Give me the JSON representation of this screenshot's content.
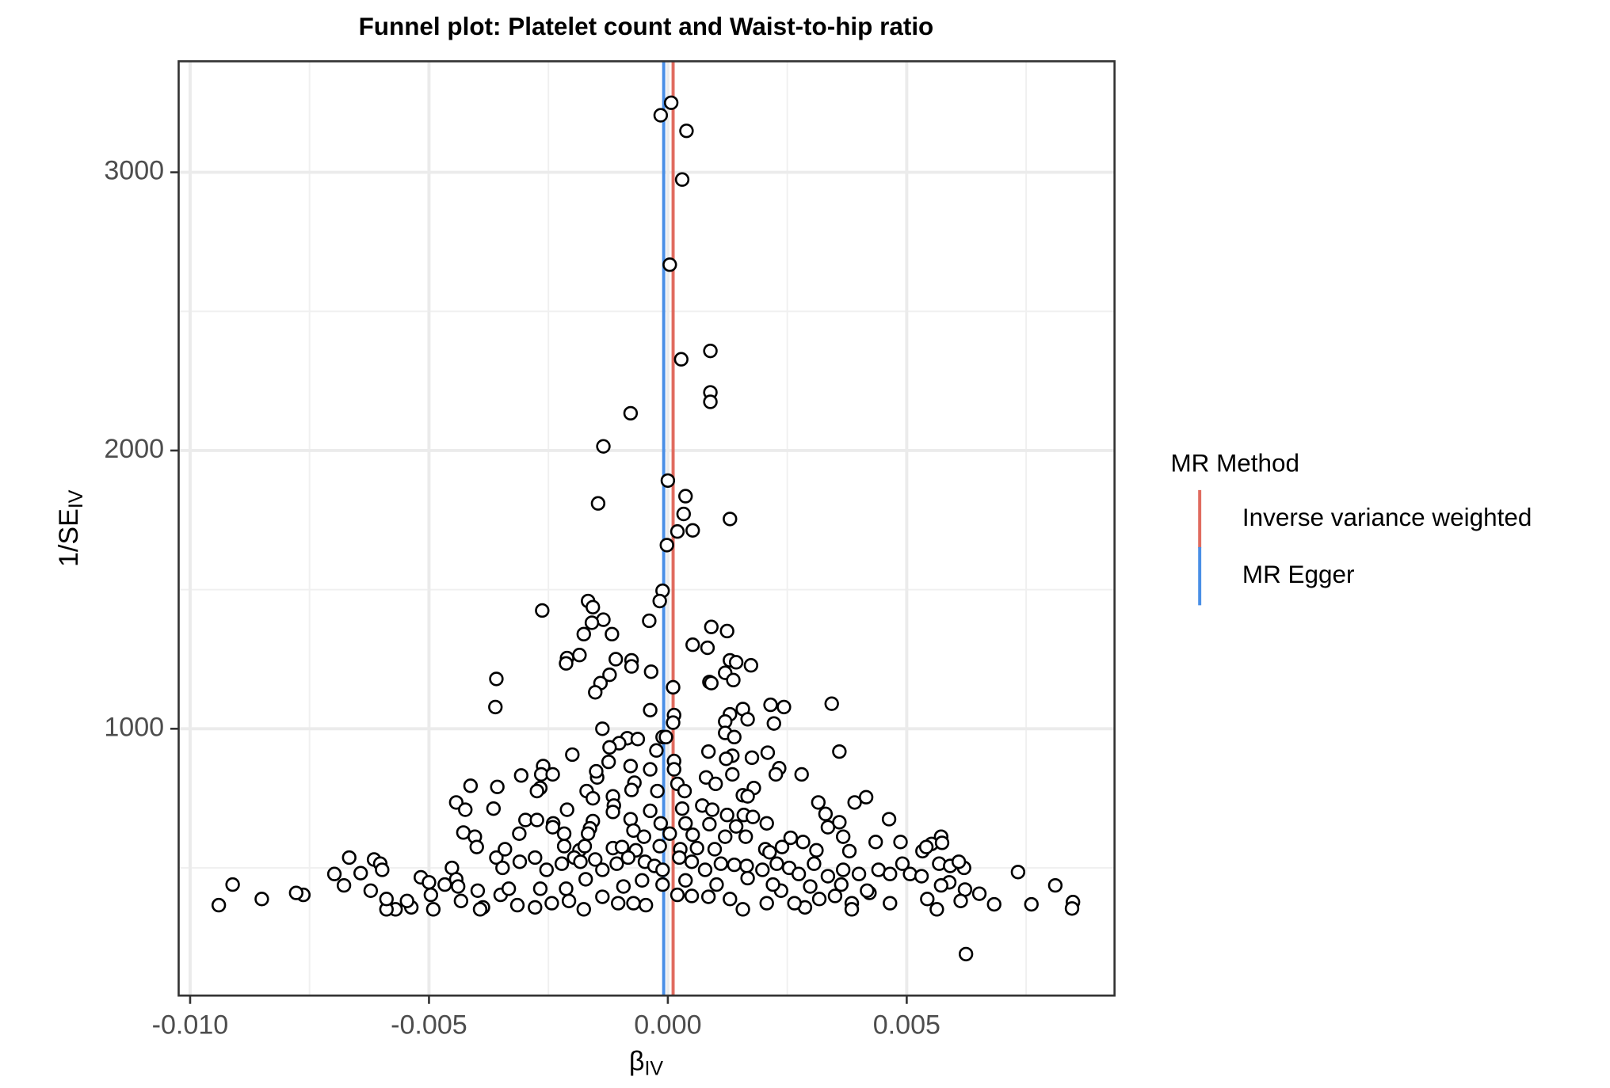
{
  "chart_data": {
    "type": "scatter",
    "title": "Funnel plot: Platelet count and Waist-to-hip ratio",
    "xlabel": "β",
    "xlabel_sub": "IV",
    "ylabel": "1/SE",
    "ylabel_sub": "IV",
    "xlim": [
      -0.01024,
      0.00935
    ],
    "ylim": [
      41,
      3399
    ],
    "xticks": [
      {
        "value": -0.01,
        "label": "-0.010"
      },
      {
        "value": -0.005,
        "label": "-0.005"
      },
      {
        "value": 0,
        "label": "0.000"
      },
      {
        "value": 0.005,
        "label": "0.005"
      }
    ],
    "yticks": [
      1000,
      2000,
      3000
    ],
    "x_minor_grid": [
      -0.0075,
      -0.0025,
      0.0025,
      0.0075
    ],
    "y_minor_grid": [
      500,
      1500,
      2500
    ],
    "grid": true,
    "legend_title": "MR Method",
    "reference_lines": [
      {
        "name": "Inverse variance weighted",
        "color": "#e06b5f",
        "value": 0.00011
      },
      {
        "name": "MR Egger",
        "color": "#4a8fe6",
        "value": -8.7e-05
      }
    ],
    "x": [
      7e-05,
      -0.00015,
      0.00039,
      0.0003,
      4e-05,
      0.00089,
      0.00028,
      0.00089,
      0.00089,
      -0.00078,
      -0.00135,
      0.0,
      0.00037,
      -0.00146,
      0.00033,
      0.0013,
      0.00052,
      0.0002,
      -2e-05,
      -0.00011,
      -0.00017,
      -0.00263,
      -0.00167,
      -0.00157,
      -0.00135,
      -0.00039,
      -0.00159,
      -0.00176,
      -0.00117,
      0.00091,
      0.00124,
      0.00052,
      0.00083,
      -0.00211,
      -0.00213,
      -0.00185,
      -0.00109,
      -0.00076,
      -0.00076,
      0.0013,
      0.00143,
      0.00174,
      0.0012,
      -0.00122,
      -0.00141,
      -0.00152,
      -0.00035,
      -0.00359,
      0.00011,
      0.00087,
      0.00137,
      0.00091,
      -0.00361,
      -0.00037,
      0.00157,
      0.00215,
      0.00243,
      0.0013,
      0.0012,
      0.00013,
      0.00011,
      -0.00137,
      0.00343,
      0.00222,
      0.00167,
      -0.00011,
      -4e-05,
      -0.00085,
      -0.00063,
      -0.00102,
      -0.00122,
      0.0012,
      0.00139,
      -0.00024,
      0.00085,
      0.00209,
      0.00359,
      -0.002,
      0.00135,
      0.00013,
      0.00122,
      0.00176,
      -0.00124,
      -0.00078,
      -0.00037,
      0.00013,
      -0.00261,
      0.00233,
      0.00226,
      0.00135,
      0.0028,
      -0.00265,
      -0.00307,
      -0.00241,
      -0.00148,
      -0.0015,
      -0.0007,
      0.0008,
      0.001,
      0.0002,
      -0.00413,
      -0.00357,
      -0.00267,
      -0.00274,
      -0.0017,
      -0.00076,
      -0.00022,
      0.00035,
      0.0018,
      0.00157,
      0.00167,
      0.00415,
      0.00391,
      0.00315,
      -0.00157,
      -0.00115,
      -0.00211,
      -0.00443,
      -0.00424,
      -0.00365,
      -0.00298,
      -0.00274,
      -0.0024,
      -0.00241,
      -0.00113,
      -0.00115,
      -0.00037,
      0.0003,
      0.00072,
      0.00093,
      0.00124,
      0.00159,
      0.00178,
      0.0033,
      0.00335,
      0.00359,
      0.00463,
      -0.00157,
      -0.00163,
      -0.00078,
      -0.00015,
      0.00037,
      0.00087,
      0.00143,
      0.00207,
      -0.00428,
      -0.00404,
      -0.00311,
      -0.00217,
      -0.00167,
      -0.00072,
      -0.0005,
      4e-05,
      0.00052,
      0.0012,
      0.00163,
      0.00257,
      0.00283,
      0.00367,
      0.00435,
      0.00487,
      0.00572,
      0.00552,
      0.00574,
      -0.004,
      -0.00217,
      -0.00185,
      -0.00174,
      -0.00115,
      -0.00096,
      -0.00067,
      -0.00017,
      0.00026,
      0.00061,
      0.00098,
      0.00204,
      0.00239,
      0.00213,
      0.00311,
      0.0038,
      0.00533,
      0.00541,
      -0.00667,
      -0.00615,
      -0.00602,
      -0.00598,
      -0.00698,
      -0.00643,
      -0.00678,
      -0.00622,
      -0.00517,
      -0.005,
      -0.00452,
      -0.00443,
      -0.00439,
      -0.00467,
      -0.00359,
      -0.00341,
      -0.00346,
      -0.0031,
      -0.00278,
      -0.00254,
      -0.00222,
      -0.00196,
      -0.00183,
      -0.00152,
      -0.00137,
      -0.00107,
      -0.00083,
      -0.00048,
      -0.00028,
      -0.00011,
      0.00024,
      0.0005,
      0.00078,
      0.00111,
      0.00139,
      0.00165,
      0.00198,
      0.00228,
      0.00254,
      0.00274,
      0.00306,
      0.00335,
      0.00367,
      0.004,
      0.00441,
      0.00465,
      0.00491,
      0.00507,
      0.00531,
      0.00568,
      0.00591,
      0.0062,
      0.00609,
      0.00589,
      0.00572,
      0.00733,
      0.00811,
      0.00848,
      0.00846,
      0.00761,
      0.00683,
      0.00652,
      0.00622,
      0.00613,
      0.00543,
      0.00563,
      0.00465,
      0.00422,
      0.00385,
      0.00385,
      0.0035,
      0.00317,
      0.00287,
      0.00265,
      0.00237,
      0.00207,
      0.00157,
      0.0013,
      0.00085,
      0.0005,
      0.0002,
      -0.00011,
      -0.00046,
      -0.00072,
      -0.00104,
      -0.00137,
      -0.00176,
      -0.00207,
      -0.00243,
      -0.00278,
      -0.00315,
      -0.0035,
      -0.00387,
      -0.00393,
      -0.00433,
      -0.00491,
      -0.00496,
      -0.00537,
      -0.00546,
      -0.0057,
      -0.00589,
      -0.00589,
      -0.00763,
      -0.00778,
      -0.0085,
      -0.00911,
      -0.0094,
      0.00624,
      -0.00172,
      -0.00093,
      -0.00054,
      0.00037,
      0.00102,
      0.00167,
      0.0022,
      0.00298,
      0.00363,
      0.00417,
      -0.00398,
      -0.00333,
      -0.00267,
      -0.00213
    ],
    "values": [
      3250,
      3205,
      3149,
      2974,
      2668,
      2358,
      2328,
      2209,
      2175,
      2134,
      2015,
      1892,
      1836,
      1810,
      1772,
      1754,
      1713,
      1709,
      1660,
      1496,
      1459,
      1425,
      1459,
      1437,
      1392,
      1388,
      1381,
      1340,
      1340,
      1366,
      1351,
      1302,
      1291,
      1254,
      1235,
      1265,
      1250,
      1246,
      1224,
      1246,
      1239,
      1228,
      1201,
      1194,
      1164,
      1131,
      1205,
      1179,
      1149,
      1168,
      1175,
      1164,
      1078,
      1067,
      1071,
      1086,
      1078,
      1052,
      1026,
      1049,
      1022,
      1000,
      1090,
      1019,
      1034,
      970,
      970,
      966,
      963,
      948,
      933,
      985,
      970,
      922,
      918,
      914,
      918,
      907,
      903,
      884,
      892,
      896,
      881,
      866,
      854,
      854,
      866,
      858,
      836,
      836,
      836,
      836,
      832,
      836,
      825,
      847,
      806,
      825,
      802,
      802,
      795,
      791,
      787,
      776,
      776,
      780,
      776,
      776,
      787,
      761,
      757,
      754,
      735,
      735,
      750,
      757,
      709,
      735,
      709,
      713,
      672,
      672,
      660,
      646,
      724,
      701,
      705,
      713,
      724,
      709,
      690,
      690,
      683,
      694,
      646,
      664,
      675,
      668,
      642,
      675,
      660,
      660,
      657,
      649,
      660,
      627,
      612,
      623,
      623,
      623,
      634,
      612,
      623,
      619,
      612,
      612,
      608,
      593,
      612,
      593,
      593,
      612,
      586,
      590,
      575,
      578,
      563,
      578,
      571,
      575,
      563,
      578,
      567,
      571,
      567,
      567,
      575,
      556,
      563,
      560,
      560,
      575,
      537,
      530,
      515,
      493,
      478,
      481,
      437,
      418,
      466,
      448,
      500,
      459,
      433,
      440,
      537,
      567,
      500,
      522,
      537,
      493,
      515,
      537,
      522,
      530,
      493,
      515,
      537,
      522,
      507,
      493,
      537,
      522,
      493,
      515,
      511,
      507,
      493,
      515,
      500,
      478,
      515,
      470,
      493,
      478,
      493,
      478,
      515,
      478,
      470,
      515,
      507,
      500,
      522,
      448,
      437,
      485,
      437,
      377,
      354,
      369,
      369,
      407,
      422,
      381,
      388,
      351,
      373,
      410,
      373,
      351,
      399,
      388,
      358,
      373,
      418,
      373,
      351,
      388,
      396,
      399,
      403,
      440,
      366,
      373,
      373,
      396,
      351,
      381,
      373,
      358,
      366,
      403,
      358,
      351,
      381,
      351,
      403,
      358,
      381,
      351,
      351,
      388,
      403,
      410,
      388,
      440,
      366,
      190,
      459,
      433,
      455,
      455,
      440,
      463,
      440,
      433,
      440,
      418,
      418,
      425,
      425,
      425
    ]
  }
}
